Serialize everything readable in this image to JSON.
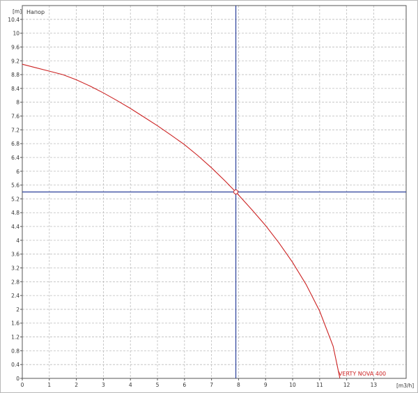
{
  "chart_data": {
    "type": "line",
    "title": "Напор",
    "xlabel": "[m3/h]",
    "ylabel": "[m]",
    "xlim": [
      0,
      14.2
    ],
    "ylim": [
      0,
      10.8
    ],
    "x_ticks": [
      0,
      1,
      2,
      3,
      4,
      5,
      6,
      7,
      8,
      9,
      10,
      11,
      12,
      13
    ],
    "y_ticks": [
      0,
      0.4,
      0.8,
      1.2,
      1.6,
      2,
      2.4,
      2.8,
      3.2,
      3.6,
      4,
      4.4,
      4.8,
      5.2,
      5.6,
      6,
      6.4,
      6.8,
      7.2,
      7.6,
      8,
      8.4,
      8.8,
      9.2,
      9.6,
      10,
      10.4
    ],
    "grid": true,
    "series": [
      {
        "name": "VERTY NOVA 400",
        "color": "#cc2222",
        "points": [
          [
            0,
            9.1
          ],
          [
            0.5,
            9.0
          ],
          [
            1,
            8.9
          ],
          [
            1.5,
            8.8
          ],
          [
            2,
            8.65
          ],
          [
            2.5,
            8.47
          ],
          [
            3,
            8.27
          ],
          [
            3.5,
            8.05
          ],
          [
            4,
            7.82
          ],
          [
            4.5,
            7.57
          ],
          [
            5,
            7.32
          ],
          [
            5.5,
            7.05
          ],
          [
            6,
            6.77
          ],
          [
            6.5,
            6.45
          ],
          [
            7,
            6.1
          ],
          [
            7.5,
            5.72
          ],
          [
            7.9,
            5.4
          ],
          [
            8.5,
            4.88
          ],
          [
            9,
            4.43
          ],
          [
            9.5,
            3.92
          ],
          [
            10,
            3.36
          ],
          [
            10.5,
            2.72
          ],
          [
            11,
            1.95
          ],
          [
            11.5,
            0.93
          ],
          [
            11.75,
            0
          ]
        ]
      }
    ],
    "operating_point": {
      "x": 7.9,
      "y": 5.4,
      "crosshair_color": "#2a3f9a",
      "marker_color": "#cc2222"
    }
  }
}
